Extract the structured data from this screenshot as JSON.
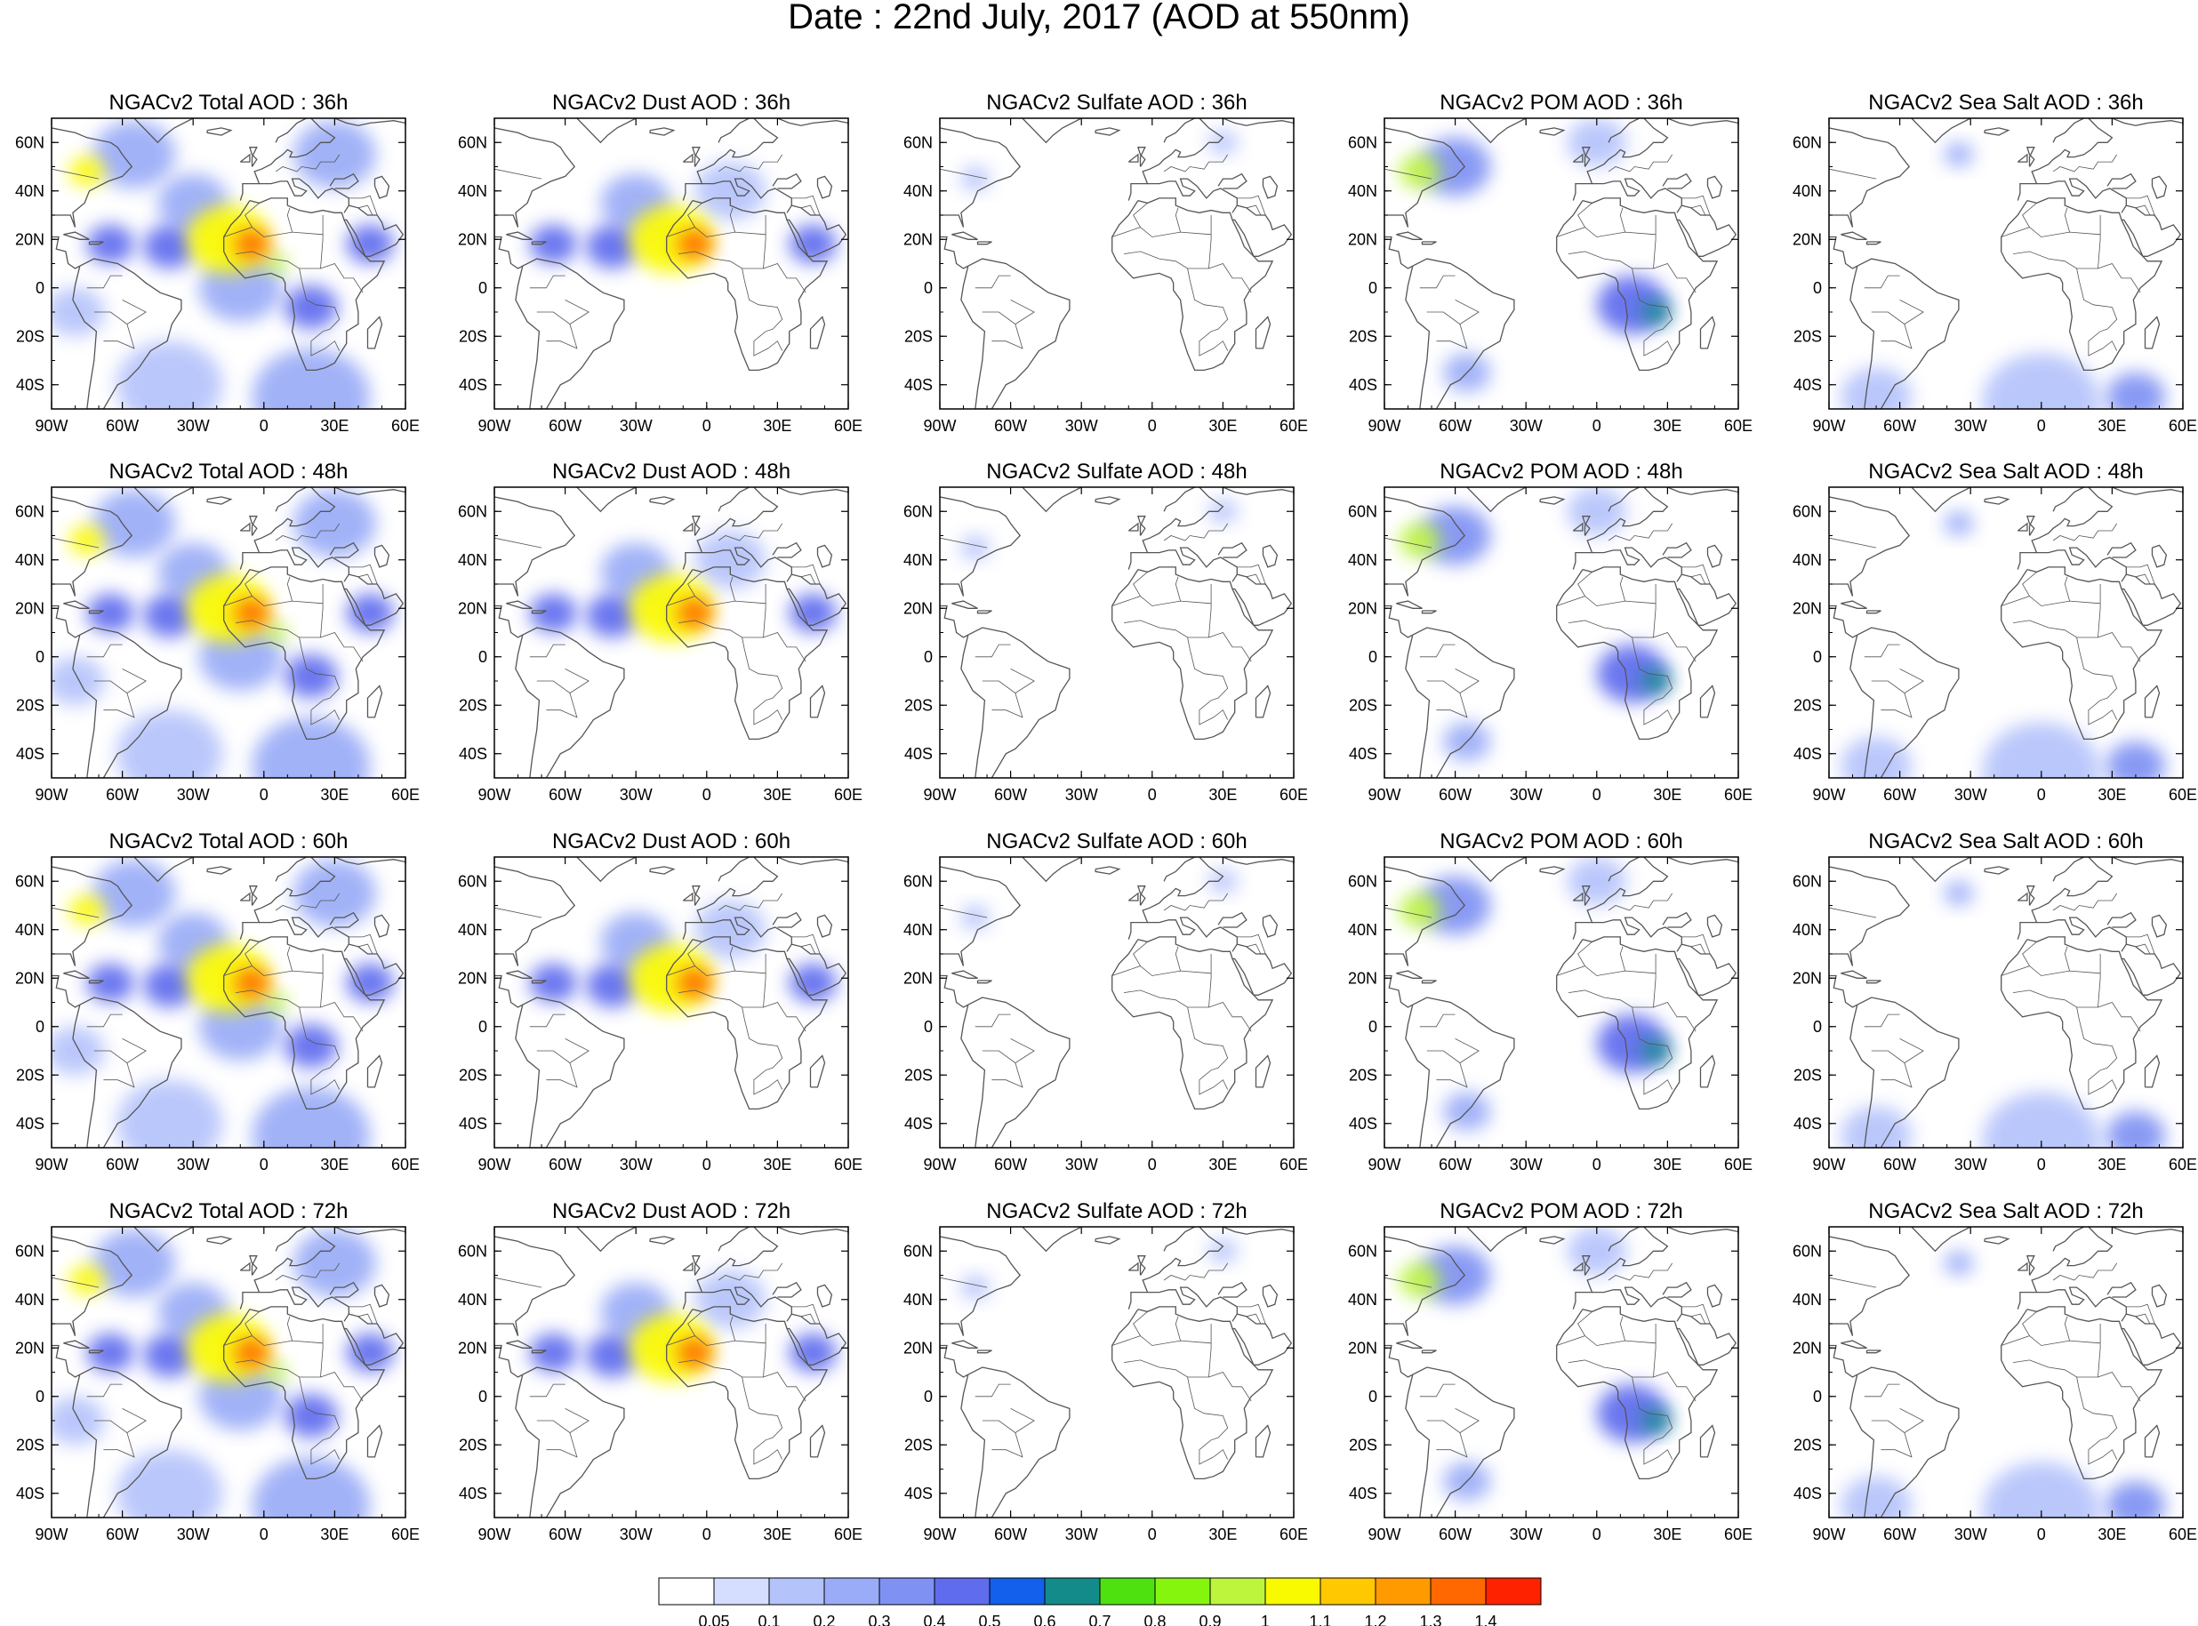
{
  "figure": {
    "title": "Date : 22nd July, 2017 (AOD at 550nm)"
  },
  "axes": {
    "lon_ticks": [
      "90W",
      "60W",
      "30W",
      "0",
      "30E",
      "60E"
    ],
    "lat_ticks": [
      "60N",
      "40N",
      "20N",
      "0",
      "20S",
      "40S"
    ],
    "lon_range": [
      -90,
      60
    ],
    "lat_range": [
      -50,
      70
    ]
  },
  "grid": {
    "rows": [
      "36h",
      "48h",
      "60h",
      "72h"
    ],
    "columns": [
      "Total",
      "Dust",
      "Sulfate",
      "POM",
      "Sea Salt"
    ]
  },
  "panels": [
    [
      "NGACv2 Total AOD : 36h",
      "NGACv2 Dust AOD : 36h",
      "NGACv2 Sulfate AOD : 36h",
      "NGACv2 POM AOD : 36h",
      "NGACv2 Sea Salt AOD : 36h"
    ],
    [
      "NGACv2 Total AOD : 48h",
      "NGACv2 Dust AOD : 48h",
      "NGACv2 Sulfate AOD : 48h",
      "NGACv2 POM AOD : 48h",
      "NGACv2 Sea Salt AOD : 48h"
    ],
    [
      "NGACv2 Total AOD : 60h",
      "NGACv2 Dust AOD : 60h",
      "NGACv2 Sulfate AOD : 60h",
      "NGACv2 POM AOD : 60h",
      "NGACv2 Sea Salt AOD : 60h"
    ],
    [
      "NGACv2 Total AOD : 72h",
      "NGACv2 Dust AOD : 72h",
      "NGACv2 Sulfate AOD : 72h",
      "NGACv2 POM AOD : 72h",
      "NGACv2 Sea Salt  AOD : 72h"
    ]
  ],
  "colorbar": {
    "labels": [
      "0.05",
      "0.1",
      "0.2",
      "0.3",
      "0.4",
      "0.5",
      "0.6",
      "0.7",
      "0.8",
      "0.9",
      "1",
      "1.1",
      "1.2",
      "1.3",
      "1.4"
    ],
    "colors": [
      "#ffffff",
      "#d5deff",
      "#b5c3fb",
      "#9aacf7",
      "#7f92f3",
      "#5f6cee",
      "#1260ec",
      "#138b8b",
      "#4ee10f",
      "#85f50e",
      "#bdf53c",
      "#f9f900",
      "#ffc800",
      "#ff9b00",
      "#ff6800",
      "#ff2200"
    ]
  },
  "map_style": {
    "land_outline": "#555555",
    "frame": "#000000"
  },
  "fields": {
    "Total": [
      {
        "lon": -75,
        "lat": 48,
        "r": 6,
        "v": 1.0,
        "rows": [
          0,
          1,
          2,
          3
        ]
      },
      {
        "lon": -15,
        "lat": 20,
        "r": 14,
        "v": 1.05,
        "rows": [
          0,
          1,
          2,
          3
        ]
      },
      {
        "lon": -5,
        "lat": 18,
        "r": 6,
        "v": 1.35,
        "rows": [
          0,
          1,
          2,
          3
        ]
      },
      {
        "lon": 5,
        "lat": 10,
        "r": 4,
        "v": 0.9,
        "rows": [
          0,
          1,
          2,
          3
        ]
      },
      {
        "lon": -40,
        "lat": 17,
        "r": 9,
        "v": 0.45,
        "rows": [
          0,
          1,
          2,
          3
        ]
      },
      {
        "lon": -65,
        "lat": 18,
        "r": 8,
        "v": 0.4,
        "rows": [
          0,
          1,
          2,
          3
        ]
      },
      {
        "lon": 45,
        "lat": 18,
        "r": 8,
        "v": 0.45,
        "rows": [
          0,
          1,
          2,
          3
        ]
      },
      {
        "lon": 20,
        "lat": -8,
        "r": 9,
        "v": 0.45,
        "rows": [
          0,
          1,
          2,
          3
        ]
      },
      {
        "lon": -30,
        "lat": 35,
        "r": 12,
        "v": 0.25,
        "rows": [
          0,
          1,
          2,
          3
        ]
      },
      {
        "lon": -10,
        "lat": 0,
        "r": 14,
        "v": 0.22,
        "rows": [
          0,
          1,
          2,
          3
        ]
      },
      {
        "lon": -55,
        "lat": 55,
        "r": 14,
        "v": 0.2,
        "rows": [
          0,
          1,
          2,
          3
        ]
      },
      {
        "lon": -40,
        "lat": -40,
        "r": 18,
        "v": 0.18,
        "rows": [
          0,
          1,
          2,
          3
        ]
      },
      {
        "lon": 20,
        "lat": -45,
        "r": 20,
        "v": 0.2,
        "rows": [
          0,
          1,
          2,
          3
        ]
      },
      {
        "lon": 30,
        "lat": 55,
        "r": 14,
        "v": 0.2,
        "rows": [
          0,
          1,
          2,
          3
        ]
      },
      {
        "lon": -80,
        "lat": -10,
        "r": 10,
        "v": 0.12,
        "rows": [
          0,
          1,
          2,
          3
        ]
      }
    ],
    "Dust": [
      {
        "lon": -15,
        "lat": 20,
        "r": 14,
        "v": 1.0,
        "rows": [
          0,
          1,
          2,
          3
        ]
      },
      {
        "lon": -5,
        "lat": 18,
        "r": 6,
        "v": 1.3,
        "rows": [
          0,
          1,
          2,
          3
        ]
      },
      {
        "lon": -40,
        "lat": 17,
        "r": 9,
        "v": 0.45,
        "rows": [
          0,
          1,
          2,
          3
        ]
      },
      {
        "lon": -65,
        "lat": 18,
        "r": 8,
        "v": 0.4,
        "rows": [
          0,
          1,
          2,
          3
        ]
      },
      {
        "lon": 45,
        "lat": 18,
        "r": 8,
        "v": 0.4,
        "rows": [
          0,
          1,
          2,
          3
        ]
      },
      {
        "lon": -30,
        "lat": 35,
        "r": 12,
        "v": 0.2,
        "rows": [
          0,
          1,
          2,
          3
        ]
      },
      {
        "lon": 10,
        "lat": 40,
        "r": 12,
        "v": 0.15,
        "rows": [
          0,
          1,
          2,
          3
        ]
      }
    ],
    "Sulfate": [
      {
        "lon": 30,
        "lat": 60,
        "r": 5,
        "v": 0.15,
        "rows": [
          0,
          1,
          2,
          3
        ]
      },
      {
        "lon": -75,
        "lat": 45,
        "r": 5,
        "v": 0.12,
        "rows": [
          0,
          1,
          2,
          3
        ]
      }
    ],
    "POM": [
      {
        "lon": -75,
        "lat": 48,
        "r": 7,
        "v": 0.9,
        "rows": [
          0,
          1,
          2,
          3
        ]
      },
      {
        "lon": -60,
        "lat": 50,
        "r": 12,
        "v": 0.3,
        "rows": [
          0,
          1,
          2,
          3
        ]
      },
      {
        "lon": 15,
        "lat": -7,
        "r": 12,
        "v": 0.45,
        "rows": [
          0,
          1,
          2,
          3
        ]
      },
      {
        "lon": 25,
        "lat": -10,
        "r": 5,
        "v": 0.6,
        "rows": [
          0,
          1,
          2,
          3
        ]
      },
      {
        "lon": -55,
        "lat": -35,
        "r": 8,
        "v": 0.2,
        "rows": [
          0,
          1,
          2,
          3
        ]
      },
      {
        "lon": 0,
        "lat": 60,
        "r": 10,
        "v": 0.12,
        "rows": [
          0,
          1,
          2,
          3
        ]
      }
    ],
    "Sea Salt": [
      {
        "lon": -35,
        "lat": 55,
        "r": 5,
        "v": 0.2,
        "rows": [
          0,
          1,
          2,
          3
        ]
      },
      {
        "lon": 0,
        "lat": -47,
        "r": 20,
        "v": 0.15,
        "rows": [
          0,
          1,
          2,
          3
        ]
      },
      {
        "lon": 40,
        "lat": -45,
        "r": 10,
        "v": 0.3,
        "rows": [
          0,
          1,
          2,
          3
        ]
      },
      {
        "lon": -70,
        "lat": -45,
        "r": 12,
        "v": 0.12,
        "rows": [
          0,
          1,
          2,
          3
        ]
      }
    ]
  }
}
